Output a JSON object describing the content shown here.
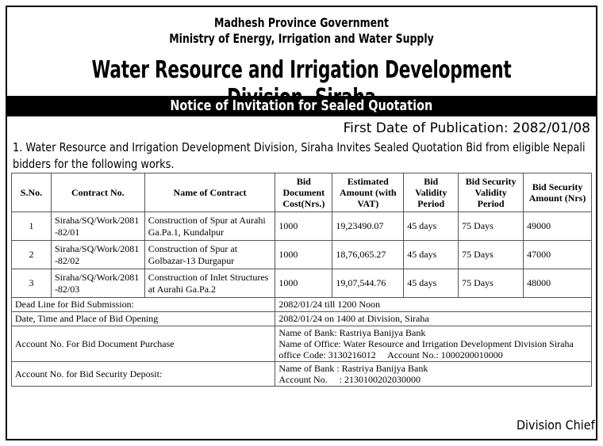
{
  "header": {
    "line1": "Madhesh Province Government",
    "line2": "Ministry of Energy, Irrigation and Water Supply",
    "office": "Water Resource and Irrigation Development Division, Siraha"
  },
  "banner": "Notice of Invitation for Sealed Quotation",
  "publication_date": "First Date of Publication: 2082/01/08",
  "intro": "1. Water Resource and Irrigation Development Division, Siraha Invites Sealed Quotation Bid from eligible Nepali bidders for the following works.",
  "table": {
    "headers": {
      "sno": "S.No.",
      "contract_no": "Contract No.",
      "name": "Name of Contract",
      "doc_cost": "Bid Document Cost(Nrs.)",
      "amount": "Estimated Amount (with VAT)",
      "validity": "Bid Validity Period",
      "sec_validity": "Bid Security Validity Period",
      "sec_amount": "Bid Security Amount (Nrs)"
    },
    "rows": [
      {
        "sno": "1",
        "contract_no": "Siraha/SQ/Work/2081-82/01",
        "name": "Construction of Spur at Aurahi Ga.Pa.1, Kundalpur",
        "doc_cost": "1000",
        "amount": "19,23490.07",
        "validity": "45 days",
        "sec_validity": "75 Days",
        "sec_amount": "49000"
      },
      {
        "sno": "2",
        "contract_no": "Siraha/SQ/Work/2081-82/02",
        "name": "Construction of Spur at Golbazar-13 Durgapur",
        "doc_cost": "1000",
        "amount": "18,76,065.27",
        "validity": "45 days",
        "sec_validity": "75 Days",
        "sec_amount": "47000"
      },
      {
        "sno": "3",
        "contract_no": "Siraha/SQ/Work/2081-82/03",
        "name": "Construction of Inlet Structures at Aurahi Ga.Pa.2",
        "doc_cost": "1000",
        "amount": "19,07,544.76",
        "validity": "45 days",
        "sec_validity": "75 Days",
        "sec_amount": "48000"
      }
    ],
    "deadline_label": "Dead Line for Bid Submission:",
    "deadline_value": "2082/01/24 till 1200 Noon",
    "opening_label": "Date, Time and Place of Bid Opening",
    "opening_value": "2082/01/24  on 1400 at Division, Siraha",
    "purchase_label": "Account No. For Bid Document Purchase",
    "purchase_lines": [
      "Name of Bank: Rastriya Banijya Bank",
      "Name of Office: Water Resource and Irrigation Development Division Siraha",
      "office Code: 3130216012     Account No.: 1000200010000"
    ],
    "deposit_label": "Account No. for Bid Security Deposit:",
    "deposit_lines": [
      "Name of Bank : Rastriya Banijya Bank",
      "Account No.     : 2130100202030000"
    ]
  },
  "signature": "Division Chief"
}
